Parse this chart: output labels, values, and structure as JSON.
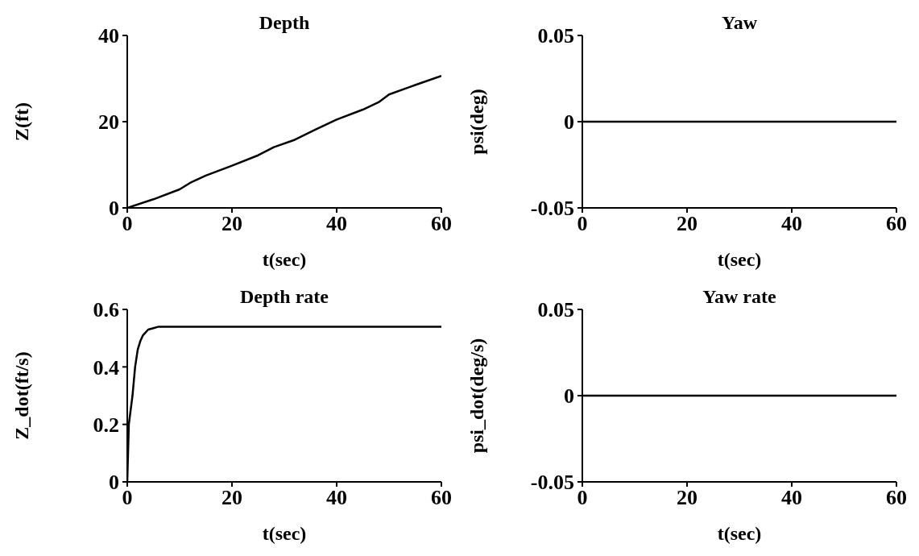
{
  "chart_data": [
    {
      "type": "line",
      "title": "Depth",
      "xlabel": "t(sec)",
      "ylabel": "Z(ft)",
      "xlim": [
        0,
        60
      ],
      "xticks": [
        0,
        20,
        40,
        60
      ],
      "ylim": [
        0,
        40
      ],
      "yticks": [
        0,
        20,
        40
      ],
      "grid": false,
      "legend": false,
      "series": [
        {
          "color": "#000000",
          "x": [
            0,
            5,
            10,
            12,
            15,
            20,
            25,
            28,
            32,
            36,
            40,
            45,
            48,
            50,
            55,
            60
          ],
          "values": [
            0,
            2,
            4.3,
            5.8,
            7.5,
            9.8,
            12.2,
            14.1,
            15.8,
            18.2,
            20.5,
            22.8,
            24.5,
            26.3,
            28.5,
            30.6
          ]
        }
      ]
    },
    {
      "type": "line",
      "title": "Yaw",
      "xlabel": "t(sec)",
      "ylabel": "psi(deg)",
      "xlim": [
        0,
        60
      ],
      "xticks": [
        0,
        20,
        40,
        60
      ],
      "ylim": [
        -0.05,
        0.05
      ],
      "yticks": [
        -0.05,
        0,
        0.05
      ],
      "grid": false,
      "legend": false,
      "series": [
        {
          "color": "#000000",
          "x": [
            0,
            60
          ],
          "values": [
            0,
            0
          ]
        }
      ]
    },
    {
      "type": "line",
      "title": "Depth rate",
      "xlabel": "t(sec)",
      "ylabel": "Z_dot(ft/s)",
      "xlim": [
        0,
        60
      ],
      "xticks": [
        0,
        20,
        40,
        60
      ],
      "ylim": [
        0,
        0.6
      ],
      "yticks": [
        0,
        0.2,
        0.4,
        0.6
      ],
      "grid": false,
      "legend": false,
      "series": [
        {
          "color": "#000000",
          "x": [
            0,
            0.3,
            1,
            1.5,
            2,
            2.5,
            3,
            4,
            5,
            6,
            60
          ],
          "values": [
            0,
            0.2,
            0.3,
            0.4,
            0.46,
            0.49,
            0.51,
            0.53,
            0.535,
            0.54,
            0.54
          ]
        }
      ]
    },
    {
      "type": "line",
      "title": "Yaw rate",
      "xlabel": "t(sec)",
      "ylabel": "psi_dot(deg/s)",
      "xlim": [
        0,
        60
      ],
      "xticks": [
        0,
        20,
        40,
        60
      ],
      "ylim": [
        -0.05,
        0.05
      ],
      "yticks": [
        -0.05,
        0,
        0.05
      ],
      "grid": false,
      "legend": false,
      "series": [
        {
          "color": "#000000",
          "x": [
            0,
            60
          ],
          "values": [
            0,
            0
          ]
        }
      ]
    }
  ]
}
